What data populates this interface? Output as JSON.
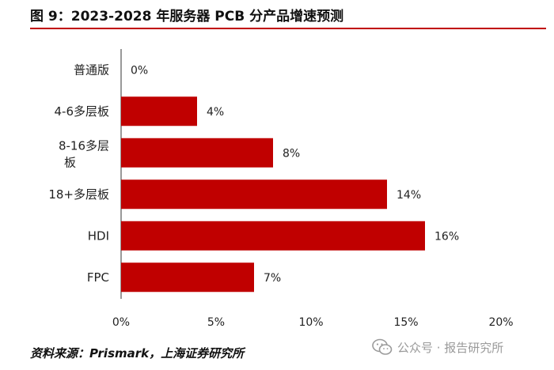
{
  "figure": {
    "title": "图 9：2023-2028 年服务器 PCB 分产品增速预测",
    "source": "资料来源：Prismark，上海证券研究所",
    "watermark": "公众号 · 报告研究所",
    "watermark_icon": "wechat-icon"
  },
  "chart_data": {
    "type": "bar",
    "orientation": "horizontal",
    "title": "图 9：2023-2028 年服务器 PCB 分产品增速预测",
    "xlabel": "",
    "ylabel": "",
    "categories": [
      "普通版",
      "4-6多层板",
      "8-16多层板",
      "18+多层板",
      "HDI",
      "FPC"
    ],
    "values": [
      0,
      4,
      8,
      14,
      16,
      7
    ],
    "data_labels": [
      "0%",
      "4%",
      "8%",
      "14%",
      "16%",
      "7%"
    ],
    "xlim": [
      0,
      20
    ],
    "x_ticks": [
      0,
      5,
      10,
      15,
      20
    ],
    "x_tick_labels": [
      "0%",
      "5%",
      "10%",
      "15%",
      "20%"
    ],
    "bar_color": "#c00000",
    "grid": false,
    "legend": "none"
  }
}
